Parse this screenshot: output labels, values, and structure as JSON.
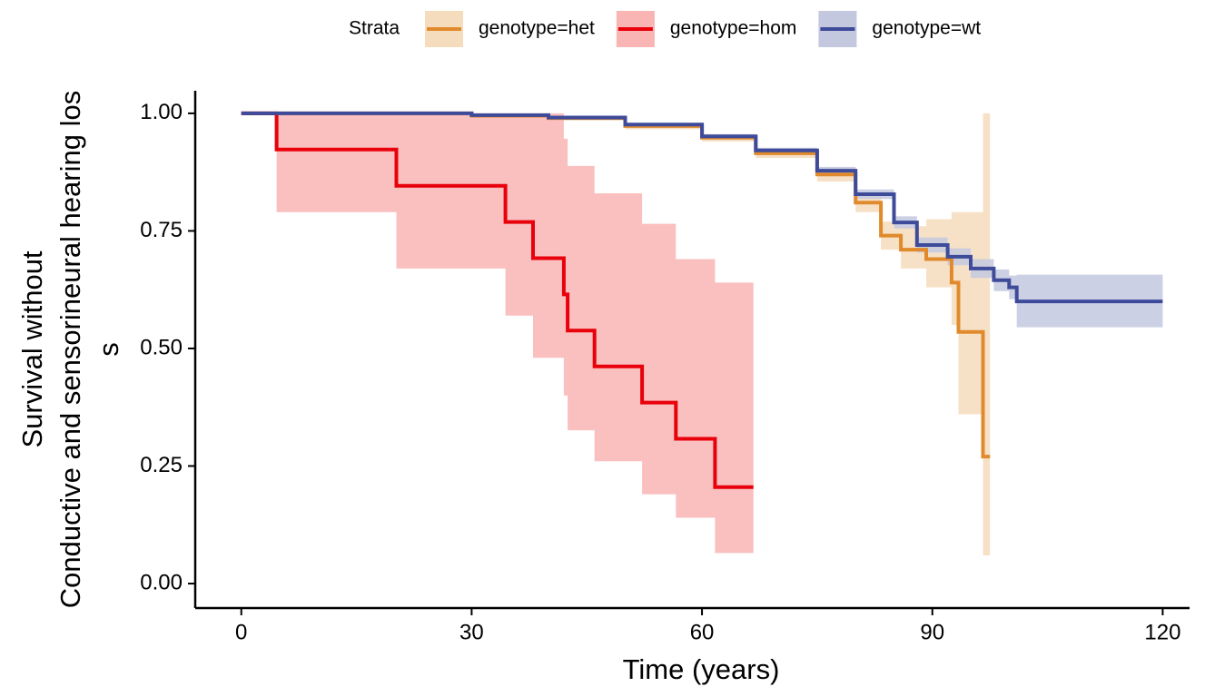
{
  "chart_data": {
    "type": "survival",
    "xlabel": "Time (years)",
    "ylabel": [
      "Survival without",
      "Conductive and sensorineural hearing los",
      "s"
    ],
    "legend_title": "Strata",
    "legend": "top",
    "xlim": [
      -6,
      123.5
    ],
    "ylim": [
      -0.052,
      1.048
    ],
    "xticks": [
      0,
      30,
      60,
      90,
      120
    ],
    "yticks": [
      {
        "value": 0,
        "label": "0.00"
      },
      {
        "value": 0.25,
        "label": "0.25"
      },
      {
        "value": 0.5,
        "label": "0.50"
      },
      {
        "value": 0.75,
        "label": "0.75"
      },
      {
        "value": 1,
        "label": "1.00"
      }
    ],
    "series": [
      {
        "name": "genotype=het",
        "color": "#e08a2c",
        "fill": "#f5dcbd",
        "x": [
          0,
          30,
          40,
          50,
          60,
          67,
          75,
          80,
          83.3,
          85.9,
          89.2,
          92.5,
          93.4,
          96.6,
          97.5
        ],
        "values": [
          1,
          0.995,
          0.99,
          0.973,
          0.948,
          0.915,
          0.87,
          0.81,
          0.74,
          0.71,
          0.69,
          0.64,
          0.535,
          0.27,
          0.27
        ],
        "upper": [
          1,
          1,
          0.995,
          0.98,
          0.955,
          0.925,
          0.885,
          0.83,
          0.77,
          0.76,
          0.775,
          0.79,
          0.79,
          1,
          1
        ],
        "lower": [
          1,
          0.99,
          0.985,
          0.966,
          0.94,
          0.905,
          0.855,
          0.79,
          0.71,
          0.67,
          0.63,
          0.55,
          0.36,
          0.06,
          0.06
        ]
      },
      {
        "name": "genotype=hom",
        "color": "#e8000b",
        "fill": "#f9b4b4",
        "x": [
          0,
          4.6,
          20.2,
          34.4,
          38.0,
          42.0,
          42.5,
          46.0,
          52.2,
          56.6,
          61.7,
          66.7
        ],
        "values": [
          1,
          0.923,
          0.846,
          0.769,
          0.692,
          0.615,
          0.538,
          0.462,
          0.385,
          0.308,
          0.205,
          0.205
        ],
        "upper": [
          1,
          1,
          1,
          1,
          1,
          0.946,
          0.888,
          0.83,
          0.765,
          0.69,
          0.64,
          0.64
        ],
        "lower": [
          1,
          0.79,
          0.67,
          0.57,
          0.48,
          0.4,
          0.326,
          0.26,
          0.19,
          0.14,
          0.065,
          0.065
        ]
      },
      {
        "name": "genotype=wt",
        "color": "#3d4b9a",
        "fill": "#c3c8df",
        "x": [
          0,
          30,
          40,
          50,
          60,
          67,
          75,
          80,
          85,
          88,
          92,
          95,
          98,
          100,
          101,
          120
        ],
        "values": [
          1,
          0.996,
          0.991,
          0.976,
          0.951,
          0.921,
          0.878,
          0.828,
          0.768,
          0.72,
          0.695,
          0.67,
          0.645,
          0.63,
          0.6,
          0.6
        ],
        "upper": [
          1,
          0.998,
          0.994,
          0.98,
          0.956,
          0.927,
          0.886,
          0.838,
          0.781,
          0.736,
          0.713,
          0.69,
          0.668,
          0.655,
          0.657,
          0.657
        ],
        "lower": [
          1,
          0.994,
          0.988,
          0.972,
          0.946,
          0.915,
          0.87,
          0.818,
          0.755,
          0.704,
          0.677,
          0.65,
          0.622,
          0.605,
          0.545,
          0.545
        ]
      }
    ]
  }
}
